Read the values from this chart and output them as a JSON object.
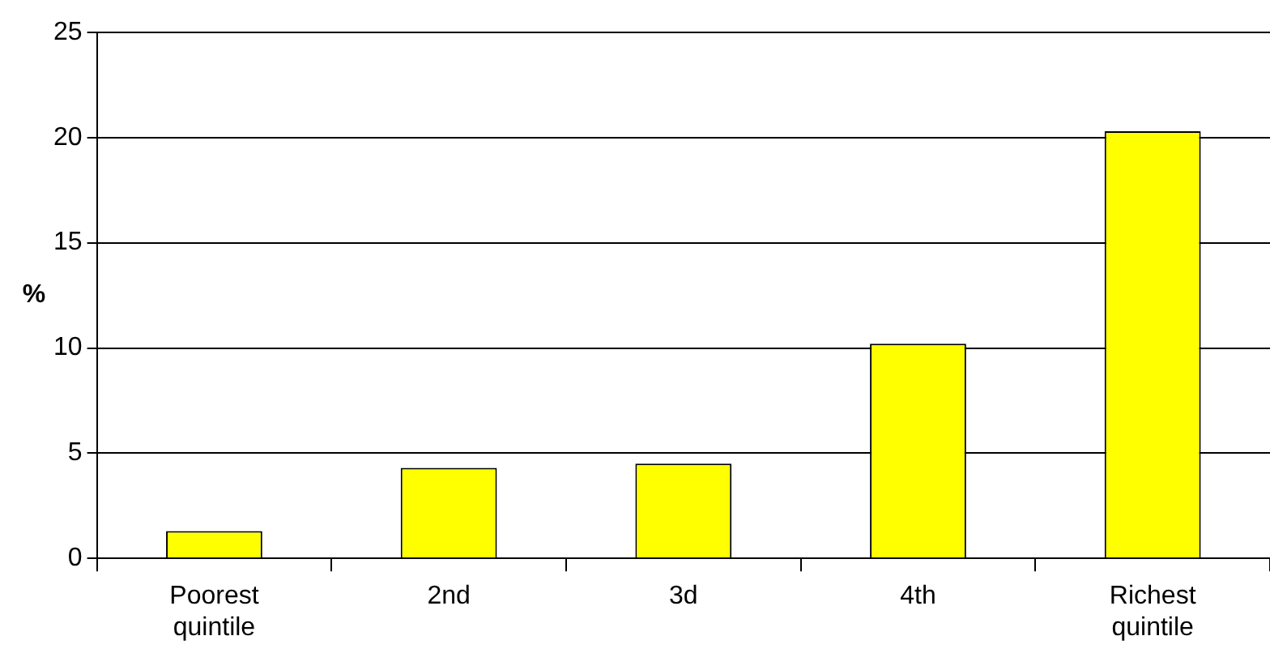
{
  "chart_data": {
    "type": "bar",
    "ylabel": "%",
    "categories": [
      "Poorest quintile",
      "2nd",
      "3d",
      "4th",
      "Richest quintile"
    ],
    "values": [
      1.3,
      4.3,
      4.5,
      10.2,
      20.3
    ],
    "color": "#ffff00",
    "ylim": [
      0,
      25
    ],
    "yticks": [
      0,
      5,
      10,
      15,
      20,
      25
    ],
    "grid": "y",
    "legend": false
  }
}
